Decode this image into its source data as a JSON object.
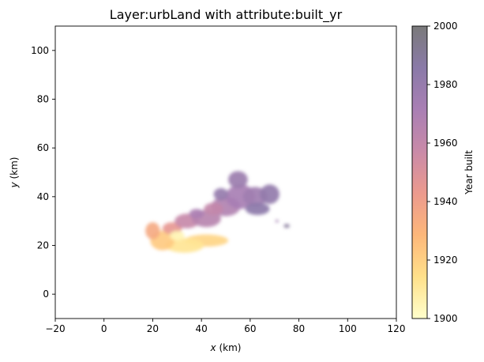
{
  "chart_data": {
    "type": "heatmap",
    "title": "Layer:urbLand with attribute:built_yr",
    "xlabel_var": "x",
    "xlabel_unit": " (km)",
    "ylabel_var": "y",
    "ylabel_unit": " (km)",
    "xlim": [
      -20,
      120
    ],
    "ylim": [
      -10,
      110
    ],
    "x_ticks": [
      -20,
      0,
      20,
      40,
      60,
      80,
      100,
      120
    ],
    "y_ticks": [
      0,
      20,
      40,
      60,
      80,
      100
    ],
    "grid": false,
    "colorbar": {
      "label": "Year built",
      "range": [
        1900,
        2000
      ],
      "ticks": [
        1900,
        1920,
        1940,
        1960,
        1980,
        2000
      ],
      "colors": [
        "#ffffcc",
        "#ffe08a",
        "#fdb77a",
        "#ec9a8e",
        "#c98aa8",
        "#a97fb4",
        "#8a7aa8",
        "#7a7a7a"
      ]
    },
    "urban_patches": [
      {
        "x": 42,
        "y": 22,
        "rx": 9,
        "ry": 2.5,
        "year": 1918
      },
      {
        "x": 33,
        "y": 20,
        "rx": 8,
        "ry": 3,
        "year": 1912
      },
      {
        "x": 24,
        "y": 22,
        "rx": 5,
        "ry": 4,
        "year": 1922
      },
      {
        "x": 20,
        "y": 26,
        "rx": 3,
        "ry": 3.5,
        "year": 1935
      },
      {
        "x": 28,
        "y": 27,
        "rx": 4,
        "ry": 2.5,
        "year": 1945
      },
      {
        "x": 34,
        "y": 30,
        "rx": 5,
        "ry": 3,
        "year": 1958
      },
      {
        "x": 42,
        "y": 31,
        "rx": 6,
        "ry": 3.5,
        "year": 1965
      },
      {
        "x": 50,
        "y": 36,
        "rx": 6,
        "ry": 4,
        "year": 1968
      },
      {
        "x": 56,
        "y": 40,
        "rx": 6,
        "ry": 5,
        "year": 1972
      },
      {
        "x": 62,
        "y": 40,
        "rx": 5,
        "ry": 4,
        "year": 1975
      },
      {
        "x": 55,
        "y": 47,
        "rx": 4,
        "ry": 3.5,
        "year": 1978
      },
      {
        "x": 68,
        "y": 41,
        "rx": 4,
        "ry": 4,
        "year": 1982
      },
      {
        "x": 63,
        "y": 35,
        "rx": 5,
        "ry": 2.5,
        "year": 1985
      },
      {
        "x": 45,
        "y": 35,
        "rx": 4,
        "ry": 2.5,
        "year": 1960
      },
      {
        "x": 38,
        "y": 33,
        "rx": 3,
        "ry": 2,
        "year": 1970
      },
      {
        "x": 30,
        "y": 24,
        "rx": 3,
        "ry": 2,
        "year": 1905
      },
      {
        "x": 48,
        "y": 41,
        "rx": 3,
        "ry": 2.5,
        "year": 1980
      },
      {
        "x": 75,
        "y": 28,
        "rx": 1.2,
        "ry": 0.8,
        "year": 1990
      },
      {
        "x": 71,
        "y": 30,
        "rx": 0.6,
        "ry": 0.6,
        "year": 1975
      }
    ]
  }
}
